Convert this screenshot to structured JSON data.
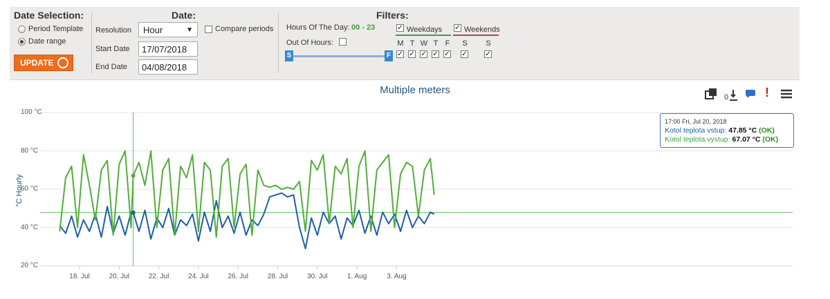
{
  "date_selection": {
    "title": "Date Selection:",
    "option_period": "Period Template",
    "option_range": "Date range",
    "update_label": "UPDATE"
  },
  "date": {
    "title": "Date:",
    "resolution_label": "Resolution",
    "resolution_value": "Hour",
    "start_label": "Start Date",
    "start_value": "17/07/2018",
    "end_label": "End Date",
    "end_value": "04/08/2018",
    "compare_label": "Compare periods"
  },
  "filters": {
    "title": "Filters:",
    "hours_label": "Hours Of The Day:",
    "hours_value": "00 - 23",
    "out_of_hours_label": "Out Of Hours:",
    "slider_start": "S",
    "slider_end": "F",
    "weekdays_label": "Weekdays",
    "weekends_label": "Weekends",
    "days": [
      "M",
      "T",
      "W",
      "T",
      "F",
      "S",
      "S"
    ]
  },
  "colors": {
    "accent_orange": "#ef6c1c",
    "series_blue": "#1c5fa8",
    "series_green": "#52ad3a",
    "weekdays_underline": "#3aa33a",
    "weekends_underline": "#d23b3b"
  },
  "toolbar_icons": [
    "fullscreen-icon",
    "download-icon",
    "comment-icon",
    "alert-icon",
    "menu-icon"
  ],
  "tooltip": {
    "time": "17:00 Fri, Jul 20, 2018",
    "row1_name": "Kotol teplota vstup:",
    "row1_value": "47.85 °C",
    "row1_status": "(OK)",
    "row2_name": "Kotol teplota vystup:",
    "row2_value": "67.07 °C",
    "row2_status": "(OK)"
  },
  "chart_data": {
    "type": "line",
    "title": "Multiple meters",
    "ylabel": "°C Hourly",
    "ylim": [
      20,
      100
    ],
    "y_ticks": [
      "100 °C",
      "80 °C",
      "60 °C",
      "40 °C",
      "20 °C"
    ],
    "x_ticks": [
      "18. Jul",
      "20. Jul",
      "22. Jul",
      "24. Jul",
      "26. Jul",
      "28. Jul",
      "30. Jul",
      "1. Aug",
      "3. Aug"
    ],
    "crosshair": {
      "x": "2018-07-20 17:00",
      "y": 47.85
    },
    "series": [
      {
        "name": "Kotol teplota vstup",
        "color": "#1c5fa8",
        "x_days_from_jul17": [
          0,
          0.3,
          0.6,
          0.9,
          1.2,
          1.5,
          1.8,
          2.1,
          2.4,
          2.7,
          3.0,
          3.3,
          3.6,
          3.71,
          4.0,
          4.3,
          4.6,
          4.9,
          5.2,
          5.5,
          5.8,
          6.1,
          6.4,
          6.7,
          7.0,
          7.3,
          7.6,
          7.9,
          8.2,
          8.5,
          8.8,
          9.1,
          9.4,
          9.7,
          10.0,
          10.3,
          10.6,
          10.9,
          11.2,
          11.5,
          11.8,
          12.1,
          12.4,
          12.7,
          13.0,
          13.3,
          13.6,
          13.9,
          14.2,
          14.5,
          14.8,
          15.1,
          15.4,
          15.7,
          16.0,
          16.3,
          16.6,
          16.9,
          17.2,
          17.5,
          17.8,
          18.1,
          18.4,
          18.7,
          18.9
        ],
        "values": [
          41,
          37,
          46,
          35,
          44,
          38,
          47,
          35,
          51,
          37,
          46,
          36,
          48,
          47.85,
          38,
          49,
          34,
          45,
          40,
          50,
          36,
          44,
          41,
          47,
          33,
          48,
          38,
          54,
          40,
          46,
          37,
          48,
          36,
          44,
          41,
          47,
          56,
          57,
          58,
          56,
          57,
          40,
          29,
          45,
          36,
          48,
          42,
          46,
          34,
          45,
          41,
          49,
          37,
          46,
          36,
          48,
          42,
          47,
          38,
          49,
          40,
          46,
          42,
          48,
          47
        ]
      },
      {
        "name": "Kotol teplota vystup",
        "color": "#52ad3a",
        "x_days_from_jul17": [
          0,
          0.3,
          0.6,
          0.9,
          1.2,
          1.5,
          1.8,
          2.1,
          2.4,
          2.7,
          3.0,
          3.3,
          3.6,
          3.71,
          4.0,
          4.3,
          4.6,
          4.9,
          5.2,
          5.5,
          5.8,
          6.1,
          6.4,
          6.7,
          7.0,
          7.3,
          7.6,
          7.9,
          8.2,
          8.5,
          8.8,
          9.1,
          9.4,
          9.7,
          10.0,
          10.3,
          10.6,
          10.9,
          11.2,
          11.5,
          11.8,
          12.1,
          12.4,
          12.7,
          13.0,
          13.3,
          13.6,
          13.9,
          14.2,
          14.5,
          14.8,
          15.1,
          15.4,
          15.7,
          16.0,
          16.3,
          16.6,
          16.9,
          17.2,
          17.5,
          17.8,
          18.1,
          18.4,
          18.7,
          18.9
        ],
        "values": [
          38,
          66,
          72,
          40,
          78,
          62,
          44,
          70,
          75,
          36,
          73,
          80,
          40,
          67.07,
          74,
          62,
          80,
          40,
          70,
          76,
          36,
          72,
          66,
          78,
          38,
          74,
          70,
          35,
          72,
          76,
          40,
          68,
          73,
          36,
          70,
          62,
          61,
          62,
          60,
          61,
          60,
          64,
          38,
          75,
          70,
          78,
          42,
          72,
          68,
          76,
          40,
          72,
          80,
          38,
          70,
          74,
          78,
          40,
          68,
          74,
          72,
          46,
          70,
          76,
          57
        ]
      }
    ]
  }
}
